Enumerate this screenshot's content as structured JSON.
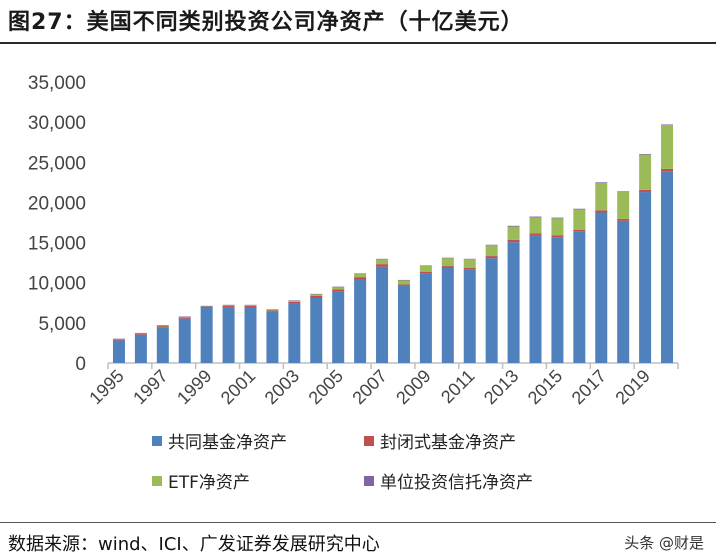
{
  "title": "图27：美国不同类别投资公司净资产（十亿美元）",
  "source": "数据来源：wind、ICI、广发证券发展研究中心",
  "watermark": "头条 @财是",
  "chart_data": {
    "type": "bar",
    "stacked": true,
    "title": "",
    "xlabel": "",
    "ylabel": "",
    "ylim": [
      0,
      35000
    ],
    "yticks": [
      0,
      5000,
      10000,
      15000,
      20000,
      25000,
      30000,
      35000
    ],
    "ytick_labels": [
      "0",
      "5,000",
      "10,000",
      "15,000",
      "20,000",
      "25,000",
      "30,000",
      "35,000"
    ],
    "grid": false,
    "legend_position": "bottom",
    "categories": [
      "1995",
      "1996",
      "1997",
      "1998",
      "1999",
      "2000",
      "2001",
      "2002",
      "2003",
      "2004",
      "2005",
      "2006",
      "2007",
      "2008",
      "2009",
      "2010",
      "2011",
      "2012",
      "2013",
      "2014",
      "2015",
      "2016",
      "2017",
      "2018",
      "2019",
      "2020"
    ],
    "xtick_labels": [
      "1995",
      "1997",
      "1999",
      "2001",
      "2003",
      "2005",
      "2007",
      "2009",
      "2011",
      "2013",
      "2015",
      "2017",
      "2019"
    ],
    "series": [
      {
        "name": "共同基金净资产",
        "color": "#4F81BD",
        "values": [
          2811,
          3526,
          4468,
          5525,
          6846,
          6965,
          6975,
          6383,
          7402,
          8095,
          8891,
          10398,
          12000,
          9604,
          11113,
          11833,
          11627,
          13054,
          15049,
          15873,
          15652,
          16344,
          18746,
          17710,
          21291,
          23900
        ]
      },
      {
        "name": "封闭式基金净资产",
        "color": "#C0504D",
        "values": [
          143,
          147,
          152,
          156,
          147,
          143,
          141,
          159,
          214,
          253,
          276,
          298,
          313,
          184,
          223,
          238,
          243,
          264,
          279,
          289,
          262,
          262,
          275,
          250,
          278,
          279
        ]
      },
      {
        "name": "ETF净资产",
        "color": "#9BBB59",
        "values": [
          1,
          2,
          7,
          16,
          34,
          66,
          83,
          102,
          151,
          228,
          301,
          423,
          608,
          531,
          777,
          992,
          1048,
          1337,
          1675,
          1975,
          2101,
          2524,
          3401,
          3371,
          4396,
          5449
        ]
      },
      {
        "name": "单位投资信托净资产",
        "color": "#8064A2",
        "values": [
          73,
          72,
          85,
          94,
          92,
          74,
          49,
          36,
          36,
          37,
          41,
          50,
          53,
          29,
          38,
          51,
          60,
          72,
          87,
          101,
          94,
          85,
          85,
          70,
          72,
          80
        ]
      }
    ]
  }
}
